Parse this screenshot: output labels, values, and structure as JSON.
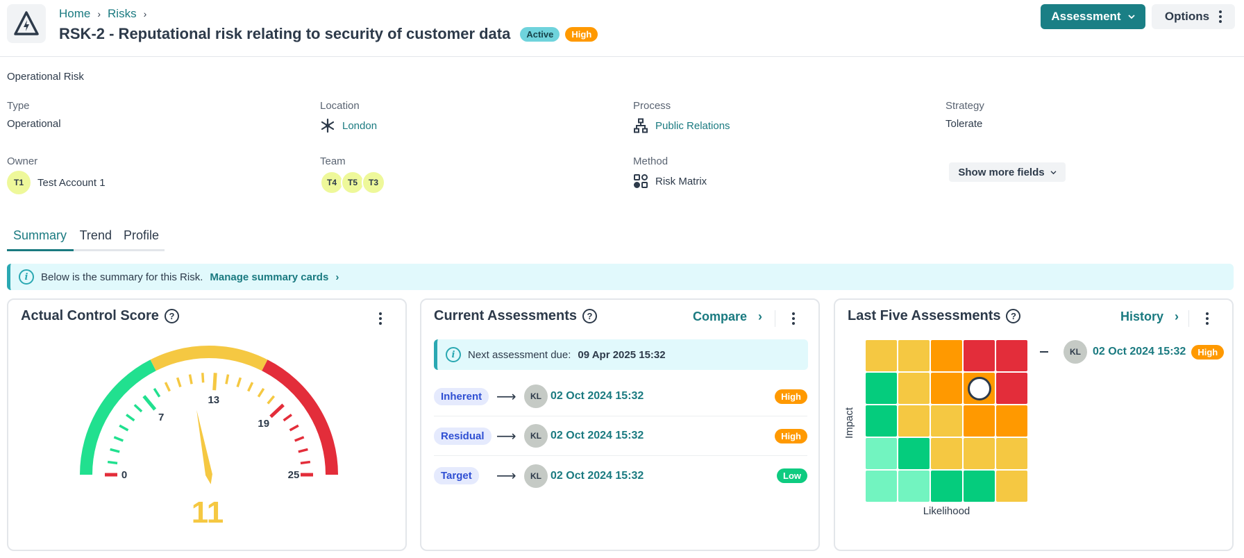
{
  "header": {
    "breadcrumb": [
      "Home",
      "Risks"
    ],
    "title": "RSK-2 - Reputational risk relating to security of customer data",
    "status_badge": "Active",
    "rating_badge": "High",
    "assessment_button": "Assessment",
    "options_button": "Options",
    "icon": "warning-electric-icon"
  },
  "details": {
    "category": "Operational Risk",
    "fields": {
      "type": {
        "label": "Type",
        "value": "Operational"
      },
      "location": {
        "label": "Location",
        "value": "London",
        "icon": "location-network-icon"
      },
      "process": {
        "label": "Process",
        "value": "Public Relations",
        "icon": "hierarchy-icon"
      },
      "strategy": {
        "label": "Strategy",
        "value": "Tolerate"
      },
      "owner": {
        "label": "Owner",
        "initials": "T1",
        "value": "Test Account 1"
      },
      "team": {
        "label": "Team",
        "members": [
          "T4",
          "T5",
          "T3"
        ]
      },
      "method": {
        "label": "Method",
        "value": "Risk Matrix",
        "icon": "matrix-icon"
      }
    },
    "show_more": "Show more fields"
  },
  "tabs": [
    {
      "label": "Summary",
      "active": true
    },
    {
      "label": "Trend",
      "active": false
    },
    {
      "label": "Profile",
      "active": false
    }
  ],
  "banner": {
    "text": "Below is the summary for this Risk.",
    "link": "Manage summary cards"
  },
  "cards": {
    "control_score": {
      "title": "Actual Control Score",
      "value": "11",
      "min": 0,
      "max": 25,
      "labels": [
        0,
        7,
        13,
        19,
        25
      ],
      "colors": {
        "green": "#21e08f",
        "yellow": "#f5c842",
        "red": "#e32d3a"
      }
    },
    "current": {
      "title": "Current Assessments",
      "compare_link": "Compare",
      "next_due_label": "Next assessment due:",
      "next_due_value": "09 Apr 2025 15:32",
      "rows": [
        {
          "type": "Inherent",
          "initials": "KL",
          "date": "02 Oct 2024 15:32",
          "rating": "High"
        },
        {
          "type": "Residual",
          "initials": "KL",
          "date": "02 Oct 2024 15:32",
          "rating": "High"
        },
        {
          "type": "Target",
          "initials": "KL",
          "date": "02 Oct 2024 15:32",
          "rating": "Low"
        }
      ]
    },
    "last_five": {
      "title": "Last Five Assessments",
      "history_link": "History",
      "x_axis": "Likelihood",
      "y_axis": "Impact",
      "matrix": [
        [
          "#f5c842",
          "#f5c842",
          "#ff9900",
          "#e32d3a",
          "#e32d3a"
        ],
        [
          "#05cc7d",
          "#f5c842",
          "#ff9900",
          "#ff9900",
          "#e32d3a"
        ],
        [
          "#05cc7d",
          "#f5c842",
          "#f5c842",
          "#ff9900",
          "#ff9900"
        ],
        [
          "#72f4c0",
          "#05cc7d",
          "#f5c842",
          "#f5c842",
          "#f5c842"
        ],
        [
          "#72f4c0",
          "#72f4c0",
          "#05cc7d",
          "#05cc7d",
          "#f5c842"
        ]
      ],
      "marker": {
        "row": 1,
        "col": 3
      },
      "entries": [
        {
          "initials": "KL",
          "date": "02 Oct 2024 15:32",
          "rating": "High"
        }
      ]
    }
  }
}
